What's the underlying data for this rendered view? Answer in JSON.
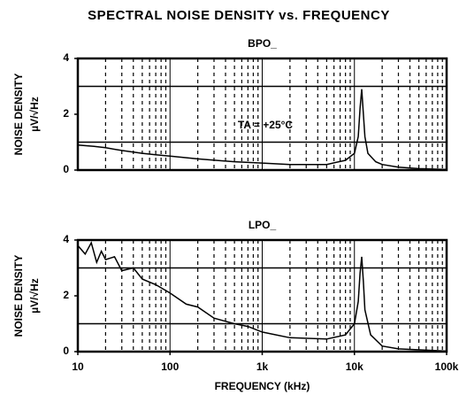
{
  "title": "SPECTRAL NOISE DENSITY vs. FREQUENCY",
  "chart_data": [
    {
      "type": "line",
      "title": "BPO_",
      "ylabel": [
        "NOISE DENSITY",
        "µV/√Hz"
      ],
      "annotation": "TA = +25°C",
      "log_x": true,
      "color": "#000000",
      "x": [
        10,
        15,
        20,
        30,
        50,
        70,
        100,
        200,
        500,
        1000,
        2000,
        5000,
        8000,
        10000,
        11000,
        11500,
        12000,
        12500,
        13000,
        14000,
        17000,
        20000,
        30000,
        50000,
        100000
      ],
      "values": [
        0.9,
        0.85,
        0.8,
        0.7,
        0.6,
        0.55,
        0.5,
        0.4,
        0.3,
        0.25,
        0.2,
        0.2,
        0.35,
        0.6,
        1.2,
        2.2,
        2.9,
        2.0,
        1.2,
        0.6,
        0.3,
        0.2,
        0.1,
        0.05,
        0.02
      ],
      "xlim": [
        10,
        100000
      ],
      "ylim": [
        0,
        4
      ],
      "yticks": [
        0,
        2,
        4
      ],
      "ygrid_minor": [
        1,
        3
      ]
    },
    {
      "type": "line",
      "title": "LPO_",
      "ylabel": [
        "NOISE DENSITY",
        "µV/√Hz"
      ],
      "xlabel": "FREQUENCY (kHz)",
      "log_x": true,
      "color": "#000000",
      "x": [
        10,
        12,
        14,
        16,
        18,
        20,
        25,
        30,
        40,
        50,
        70,
        100,
        150,
        200,
        300,
        500,
        700,
        1000,
        2000,
        5000,
        8000,
        10000,
        11000,
        11500,
        12000,
        12500,
        13000,
        15000,
        20000,
        30000,
        100000
      ],
      "values": [
        3.8,
        3.5,
        3.9,
        3.2,
        3.6,
        3.3,
        3.4,
        2.9,
        3.0,
        2.6,
        2.4,
        2.1,
        1.7,
        1.6,
        1.2,
        1.0,
        0.9,
        0.7,
        0.5,
        0.45,
        0.6,
        1.0,
        1.8,
        2.8,
        3.4,
        2.5,
        1.5,
        0.6,
        0.2,
        0.1,
        0.02
      ],
      "xlim": [
        10,
        100000
      ],
      "ylim": [
        0,
        4
      ],
      "yticks": [
        0,
        2,
        4
      ],
      "ygrid_minor": [
        1,
        3
      ],
      "xticks": [
        {
          "value": 10,
          "label": "10"
        },
        100,
        {
          "value": 1000,
          "label": "1k"
        },
        {
          "value": 10000,
          "label": "10k"
        },
        {
          "value": 100000,
          "label": "100k"
        }
      ]
    }
  ]
}
